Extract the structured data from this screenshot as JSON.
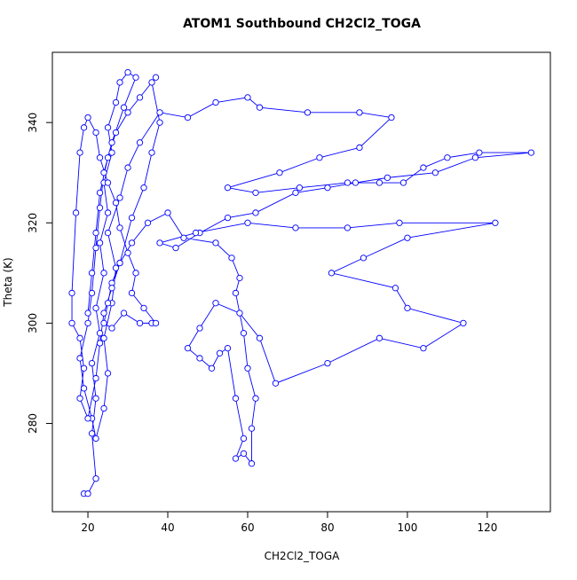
{
  "chart_data": {
    "type": "line",
    "title": "ATOM1 Southbound CH2Cl2_TOGA",
    "x_label": "CH2Cl2_TOGA",
    "y_label": "Theta (K)",
    "markers": true,
    "x": [
      19,
      20,
      22,
      21,
      22,
      21,
      23,
      22,
      24,
      23,
      25,
      24,
      26,
      25,
      27,
      28,
      30,
      32,
      29,
      26,
      24,
      23,
      22,
      21,
      20,
      18,
      19,
      21,
      22,
      24,
      25,
      24,
      26,
      27,
      25,
      28,
      30,
      33,
      38,
      45,
      52,
      60,
      63,
      75,
      88,
      96,
      88,
      78,
      68,
      55,
      62,
      73,
      85,
      93,
      99,
      104,
      110,
      118,
      131,
      117,
      107,
      95,
      87,
      80,
      72,
      62,
      55,
      48,
      42,
      38,
      47,
      60,
      72,
      85,
      98,
      122,
      100,
      89,
      81,
      97,
      100,
      114,
      104,
      93,
      80,
      67,
      63,
      58,
      52,
      48,
      45,
      48,
      51,
      53,
      55,
      57,
      59,
      57,
      59,
      61,
      61,
      62,
      60,
      59,
      57,
      58,
      56,
      52,
      44,
      40,
      35,
      31,
      28,
      26,
      25,
      24,
      26,
      29,
      33,
      36,
      37,
      34,
      31,
      32,
      30,
      28,
      27,
      25,
      23,
      22,
      20,
      19,
      18,
      17,
      16,
      16,
      18,
      19,
      18,
      20,
      22,
      23,
      24,
      26,
      28,
      31,
      34,
      36,
      38,
      36,
      37,
      33,
      30,
      27,
      25,
      23,
      22,
      21,
      20
    ],
    "series": [
      {
        "name": "CH2Cl2_TOGA",
        "color": "#0000ff",
        "values": [
          266,
          266,
          269,
          278,
          285,
          292,
          298,
          303,
          310,
          316,
          322,
          328,
          334,
          339,
          344,
          348,
          350,
          349,
          343,
          336,
          330,
          323,
          315,
          306,
          300,
          293,
          287,
          281,
          277,
          283,
          290,
          297,
          304,
          311,
          318,
          325,
          331,
          336,
          342,
          341,
          344,
          345,
          343,
          342,
          342,
          341,
          335,
          333,
          330,
          327,
          326,
          327,
          328,
          328,
          328,
          331,
          333,
          334,
          334,
          333,
          330,
          329,
          328,
          327,
          326,
          322,
          321,
          318,
          315,
          316,
          318,
          320,
          319,
          319,
          320,
          320,
          317,
          313,
          310,
          307,
          303,
          300,
          295,
          297,
          292,
          288,
          297,
          302,
          304,
          299,
          295,
          293,
          291,
          294,
          295,
          285,
          277,
          273,
          274,
          272,
          279,
          285,
          291,
          298,
          306,
          309,
          313,
          316,
          317,
          322,
          320,
          316,
          312,
          308,
          304,
          300,
          299,
          302,
          300,
          300,
          300,
          303,
          306,
          310,
          314,
          319,
          324,
          328,
          333,
          338,
          341,
          339,
          334,
          322,
          306,
          300,
          297,
          291,
          285,
          281,
          289,
          296,
          302,
          307,
          312,
          321,
          327,
          334,
          340,
          348,
          349,
          345,
          342,
          338,
          333,
          326,
          318,
          310,
          302
        ]
      }
    ],
    "xlim": [
      11.1,
      135.8
    ],
    "ylim": [
      262.4,
      354.0
    ],
    "xticks": [
      20,
      40,
      60,
      80,
      100,
      120
    ],
    "yticks": [
      280,
      300,
      320,
      340
    ]
  }
}
